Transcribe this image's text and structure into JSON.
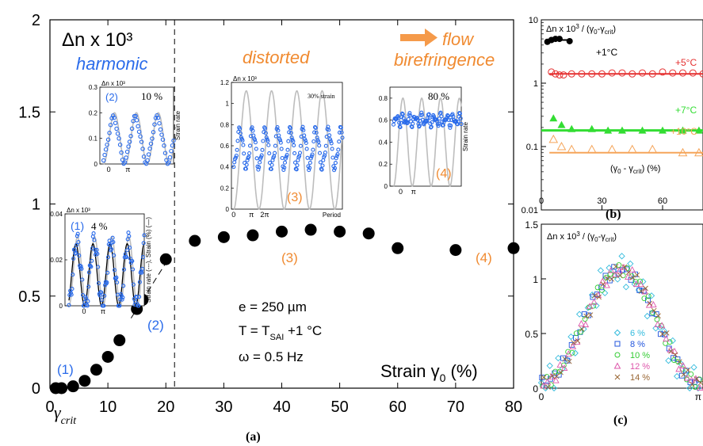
{
  "chart_data": [
    {
      "panel": "(a)",
      "type": "scatter",
      "xlabel": "Strain γ0 (%)",
      "ylabel": "Δn x 10³",
      "xlim": [
        0,
        80
      ],
      "ylim": [
        0,
        2
      ],
      "xticks": [
        "0",
        "10",
        "20",
        "30",
        "40",
        "50",
        "60",
        "70",
        "80"
      ],
      "yticks": [
        "0",
        "0.5",
        "1",
        "1.5",
        "2"
      ],
      "gamma_crit_label": "γcrit",
      "gamma_crit_x": 21.5,
      "region_labels": [
        "harmonic",
        "distorted",
        "flow birefringence"
      ],
      "point_labels": [
        "(1)",
        "(2)",
        "(3)",
        "(4)"
      ],
      "conditions": [
        "e = 250 µm",
        "T = TSAI +1 °C",
        "ω = 0.5 Hz"
      ],
      "series": [
        {
          "x": [
            1,
            2,
            4,
            6,
            8,
            10,
            12,
            15,
            16,
            20,
            25,
            30,
            35,
            40,
            45,
            50,
            55,
            60,
            70,
            80
          ],
          "y": [
            0.0,
            0.0,
            0.01,
            0.04,
            0.1,
            0.17,
            0.26,
            0.43,
            0.48,
            0.7,
            0.8,
            0.82,
            0.83,
            0.85,
            0.86,
            0.85,
            0.84,
            0.76,
            0.75,
            0.76
          ]
        }
      ],
      "dashed_fit": {
        "x": [
          14,
          20
        ],
        "y": [
          0.38,
          0.68
        ]
      }
    },
    {
      "panel": "(b)",
      "type": "scatter",
      "ylabel": "Δn x 10³ / (γ0-γcrit)",
      "xlabel": "(γ0 - γcrit) (%)",
      "yscale": "log",
      "xlim": [
        0,
        80
      ],
      "ylim": [
        0.01,
        10
      ],
      "xticks": [
        "0",
        "30",
        "60"
      ],
      "yticks": [
        "0.01",
        "0.1",
        "1",
        "10"
      ],
      "series": [
        {
          "name": "+1°C",
          "color": "#000000",
          "x": [
            3,
            5,
            7,
            9,
            14
          ],
          "y": [
            4.5,
            4.8,
            5.0,
            5.0,
            4.6
          ]
        },
        {
          "name": "+5°C",
          "color": "#e53030",
          "x": [
            5,
            7,
            9,
            11,
            15,
            20,
            25,
            30,
            35,
            40,
            45,
            50,
            55,
            60,
            65,
            70,
            75,
            80
          ],
          "y": [
            1.5,
            1.4,
            1.35,
            1.35,
            1.4,
            1.4,
            1.4,
            1.4,
            1.45,
            1.45,
            1.4,
            1.45,
            1.4,
            1.5,
            1.45,
            1.45,
            1.45,
            1.4
          ]
        },
        {
          "name": "+7°C",
          "color": "#33dd33",
          "x": [
            6,
            10,
            15,
            25,
            33,
            40,
            50,
            60,
            70,
            78
          ],
          "y": [
            0.28,
            0.22,
            0.19,
            0.19,
            0.18,
            0.18,
            0.18,
            0.18,
            0.18,
            0.18
          ]
        },
        {
          "name": "+10°C",
          "color": "#f5a55a",
          "x": [
            6,
            10,
            15,
            25,
            35,
            45,
            55,
            70,
            78
          ],
          "y": [
            0.13,
            0.1,
            0.09,
            0.09,
            0.09,
            0.09,
            0.09,
            0.08,
            0.08
          ]
        }
      ],
      "fits": [
        {
          "color": "#000000",
          "y": 4.8,
          "x": [
            2,
            15
          ]
        },
        {
          "color": "#e53030",
          "y": 1.4,
          "x": [
            4,
            80
          ]
        },
        {
          "color": "#33dd33",
          "y": 0.18,
          "x": [
            0,
            80
          ]
        },
        {
          "color": "#f5a55a",
          "y": 0.08,
          "x": [
            4,
            80
          ]
        }
      ]
    },
    {
      "panel": "(c)",
      "type": "scatter",
      "ylabel": "Δn x 10³ / (γ0-γcrit)",
      "xlim": [
        0,
        1
      ],
      "ylim": [
        0,
        1.5
      ],
      "xticks": [
        "0",
        "π"
      ],
      "yticks": [
        "0",
        "0.5",
        "1",
        "1.5"
      ],
      "series": [
        {
          "name": "6 %",
          "color": "#33bbdd"
        },
        {
          "name": "8 %",
          "color": "#2255dd"
        },
        {
          "name": "10 %",
          "color": "#33cc33"
        },
        {
          "name": "12 %",
          "color": "#dd55aa"
        },
        {
          "name": "14 %",
          "color": "#996633"
        }
      ]
    }
  ],
  "insets": [
    {
      "label": "(2)",
      "percent": "10 %",
      "ylabel": "Δn x 10³",
      "right_label": "Strain rate",
      "yticks": [
        "0",
        "0.1",
        "0.2",
        "0.3"
      ],
      "xticks": [
        "0",
        "π"
      ]
    },
    {
      "label": "(3)",
      "percent": "30% strain",
      "ylabel": "Δn x 10³",
      "xlabel": "Period",
      "yticks": [
        "0",
        "0.2",
        "0.4",
        "0.6",
        "0.8",
        "1",
        "1.2"
      ],
      "xticks": [
        "0",
        "π",
        "2π"
      ]
    },
    {
      "label": "(4)",
      "percent": "80 %",
      "right_label": "Strain rate",
      "yticks": [
        "0",
        "0.2",
        "0.4",
        "0.6",
        "0.8"
      ],
      "xticks": [
        "0",
        "π"
      ]
    },
    {
      "label": "(1)",
      "percent": "4 %",
      "ylabel": "Δn x 10³",
      "right_label": "Strain rate (---), Strain (%) (—)",
      "yticks": [
        "0",
        "0.02",
        "0.04"
      ],
      "xticks": [
        "0",
        "π"
      ]
    }
  ],
  "colors": {
    "blue": "#2a6bea",
    "orange": "#f08a30",
    "gray": "#bdbdbd"
  }
}
